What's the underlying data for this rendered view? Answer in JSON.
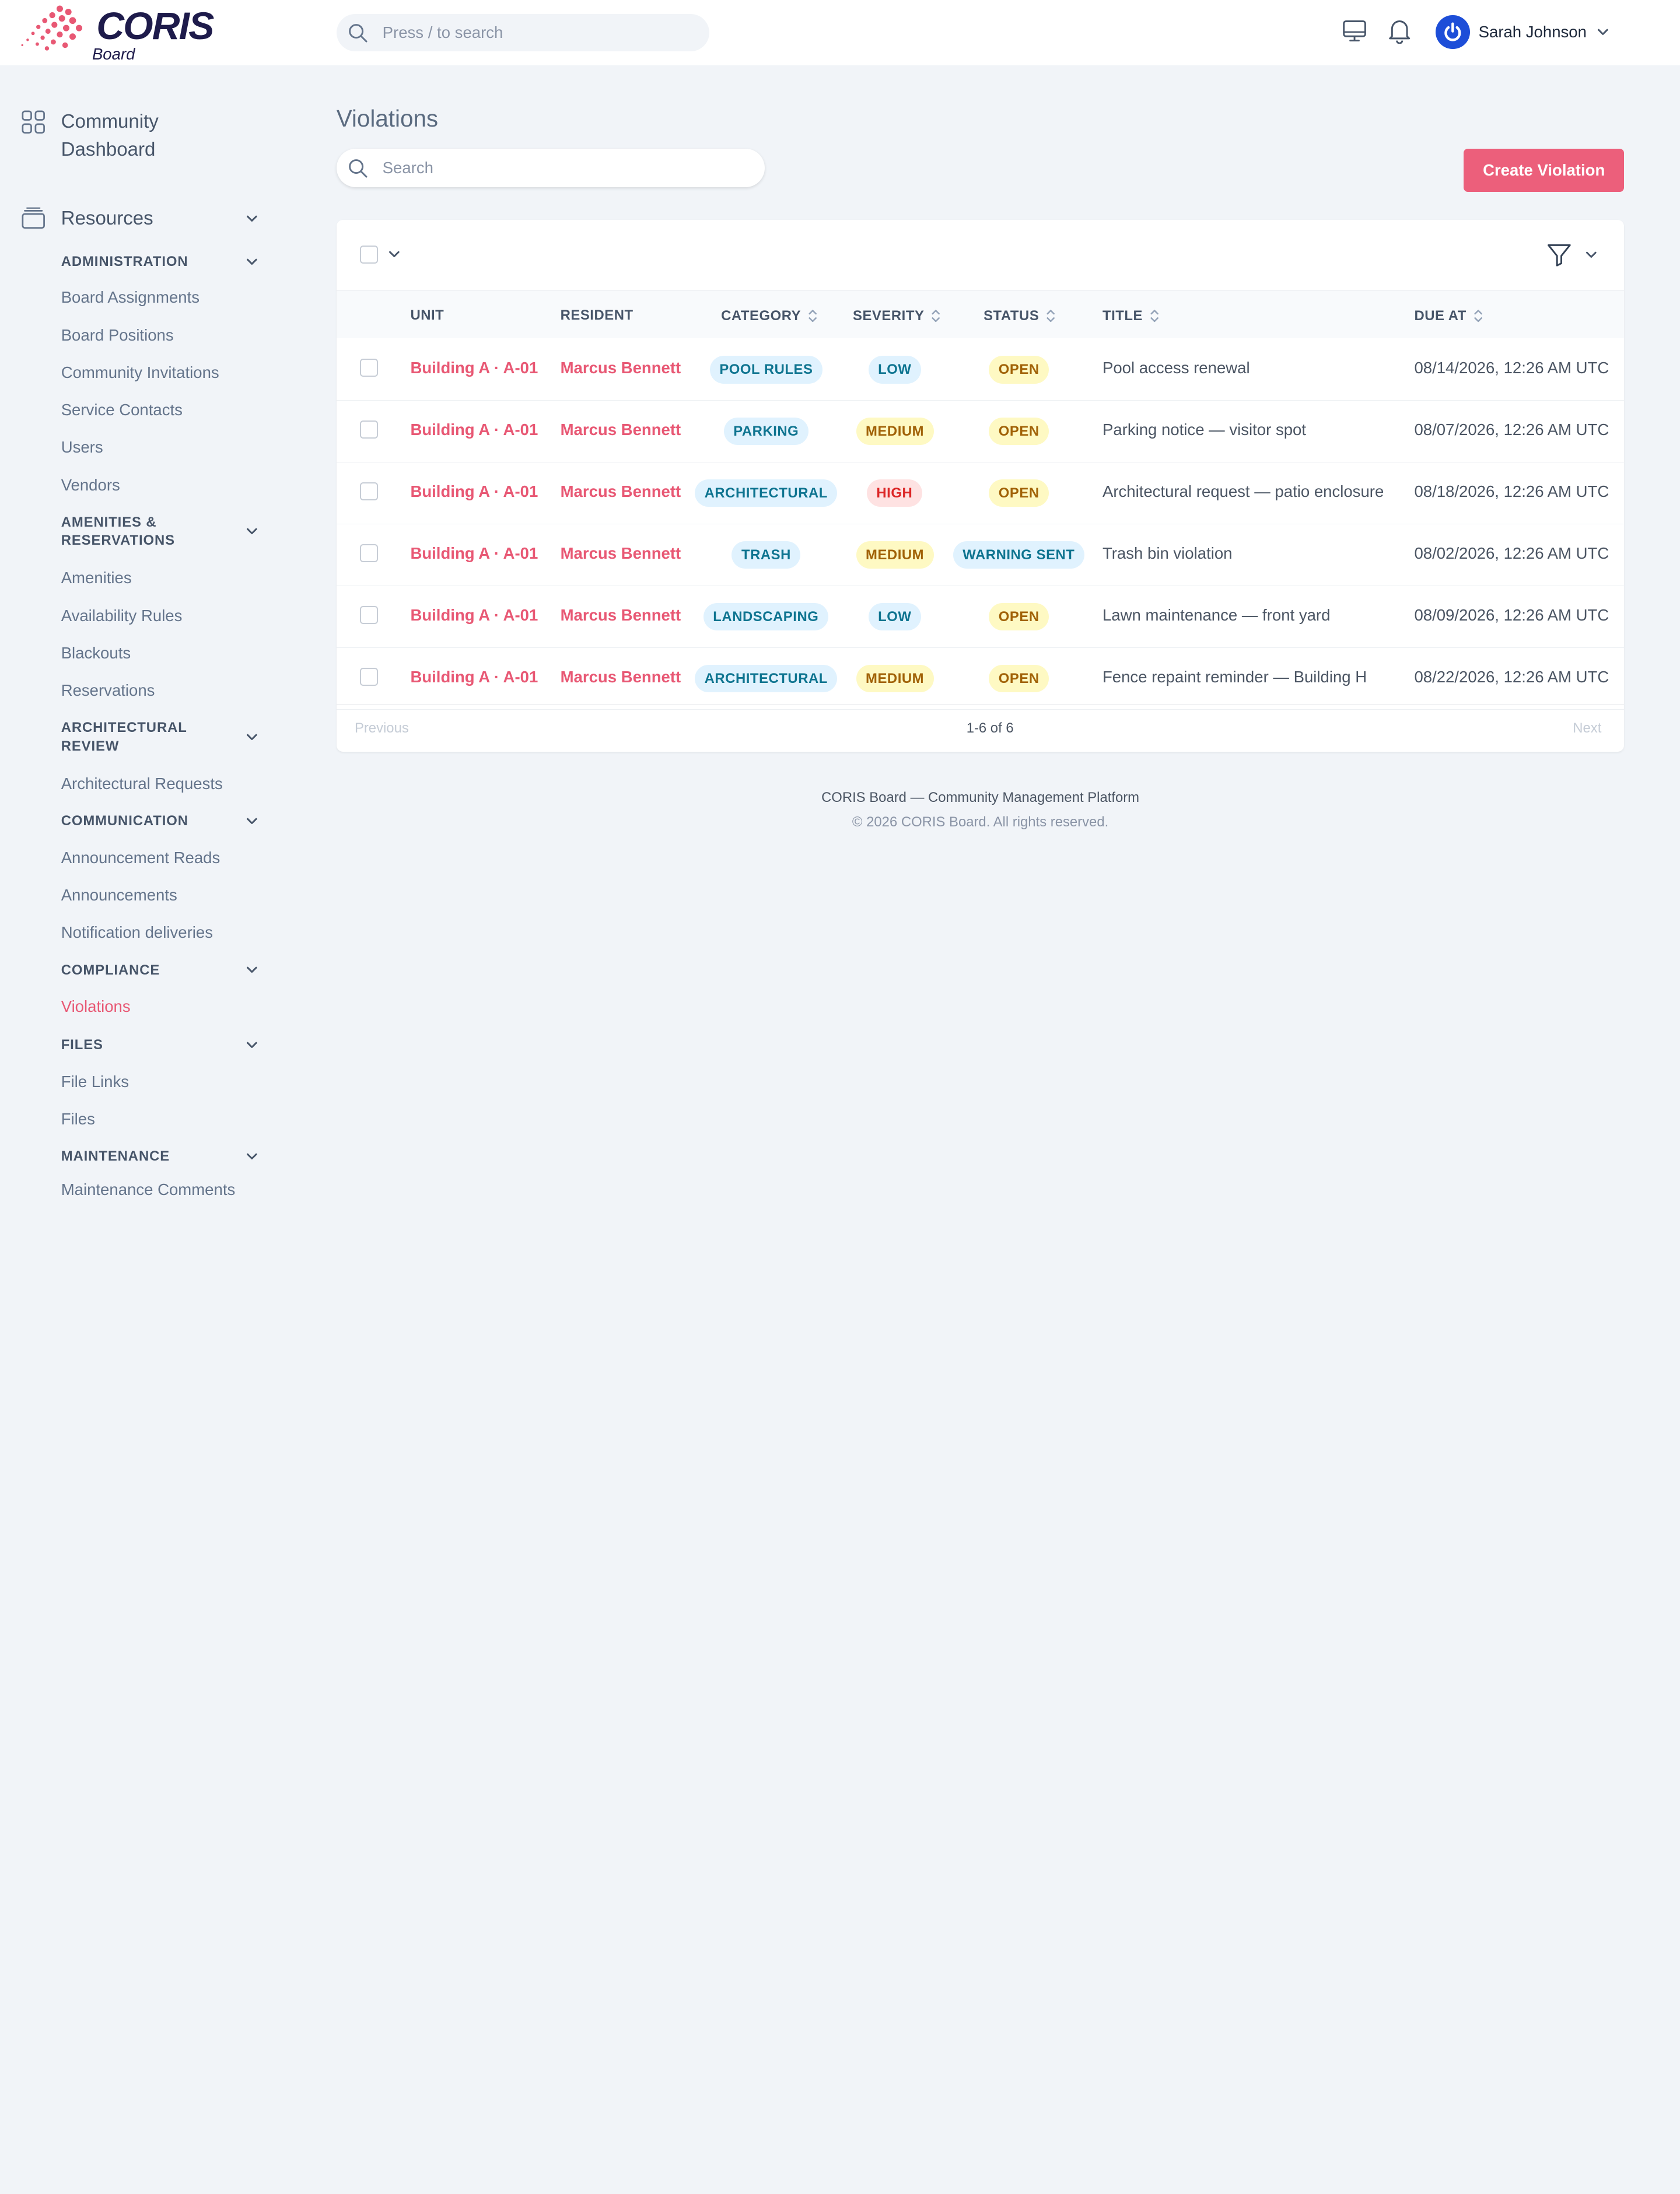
{
  "header": {
    "brand": "CORIS",
    "brand_sub": "Board",
    "search_placeholder": "Press / to search",
    "user_name": "Sarah Johnson",
    "icons": [
      "monitor-icon",
      "bell-icon",
      "power-icon",
      "chevron-down-icon"
    ]
  },
  "sidebar": {
    "dashboard": "Community Dashboard",
    "resources": "Resources",
    "sections": [
      {
        "label": "ADMINISTRATION",
        "items": [
          "Board Assignments",
          "Board Positions",
          "Community Invitations",
          "Service Contacts",
          "Users",
          "Vendors"
        ]
      },
      {
        "label": "AMENITIES & RESERVATIONS",
        "items": [
          "Amenities",
          "Availability Rules",
          "Blackouts",
          "Reservations"
        ]
      },
      {
        "label": "ARCHITECTURAL REVIEW",
        "items": [
          "Architectural Requests"
        ]
      },
      {
        "label": "COMMUNICATION",
        "items": [
          "Announcement Reads",
          "Announcements",
          "Notification deliveries"
        ]
      },
      {
        "label": "COMPLIANCE",
        "items": [
          "Violations"
        ]
      },
      {
        "label": "FILES",
        "items": [
          "File Links",
          "Files"
        ]
      },
      {
        "label": "MAINTENANCE",
        "items": [
          "Maintenance Comments"
        ]
      }
    ],
    "active_item": "Violations"
  },
  "main": {
    "title": "Violations",
    "search_placeholder": "Search",
    "create_label": "Create Violation",
    "columns": [
      "UNIT",
      "RESIDENT",
      "CATEGORY",
      "SEVERITY",
      "STATUS",
      "TITLE",
      "DUE AT"
    ],
    "rows": [
      {
        "unit": "Building A · A-01",
        "resident": "Marcus Bennett",
        "category": "POOL RULES",
        "severity": "LOW",
        "status": "OPEN",
        "title": "Pool access renewal",
        "due": "08/14/2026, 12:26 AM UTC"
      },
      {
        "unit": "Building A · A-01",
        "resident": "Marcus Bennett",
        "category": "PARKING",
        "severity": "MEDIUM",
        "status": "OPEN",
        "title": "Parking notice — visitor spot",
        "due": "08/07/2026, 12:26 AM UTC"
      },
      {
        "unit": "Building A · A-01",
        "resident": "Marcus Bennett",
        "category": "ARCHITECTURAL",
        "severity": "HIGH",
        "status": "OPEN",
        "title": "Architectural request — patio enclosure",
        "due": "08/18/2026, 12:26 AM UTC"
      },
      {
        "unit": "Building A · A-01",
        "resident": "Marcus Bennett",
        "category": "TRASH",
        "severity": "MEDIUM",
        "status": "WARNING SENT",
        "title": "Trash bin violation",
        "due": "08/02/2026, 12:26 AM UTC"
      },
      {
        "unit": "Building A · A-01",
        "resident": "Marcus Bennett",
        "category": "LANDSCAPING",
        "severity": "LOW",
        "status": "OPEN",
        "title": "Lawn maintenance — front yard",
        "due": "08/09/2026, 12:26 AM UTC"
      },
      {
        "unit": "Building A · A-01",
        "resident": "Marcus Bennett",
        "category": "ARCHITECTURAL",
        "severity": "MEDIUM",
        "status": "OPEN",
        "title": "Fence repaint reminder — Building H",
        "due": "08/22/2026, 12:26 AM UTC"
      }
    ],
    "pager": {
      "prev": "Previous",
      "count": "1-6 of 6",
      "next": "Next"
    }
  },
  "footer": {
    "line1": "CORIS Board — Community Management Platform",
    "line2": "© 2026 CORIS Board. All rights reserved."
  },
  "colors": {
    "accent": "#e85874",
    "button": "#ec5f7b",
    "badge_blue_bg": "#e0f2fe",
    "badge_blue_fg": "#0e7490",
    "badge_yellow_bg": "#fef9c3",
    "badge_yellow_fg": "#a16207",
    "badge_red_bg": "#fee2e2",
    "badge_red_fg": "#dc2626"
  }
}
